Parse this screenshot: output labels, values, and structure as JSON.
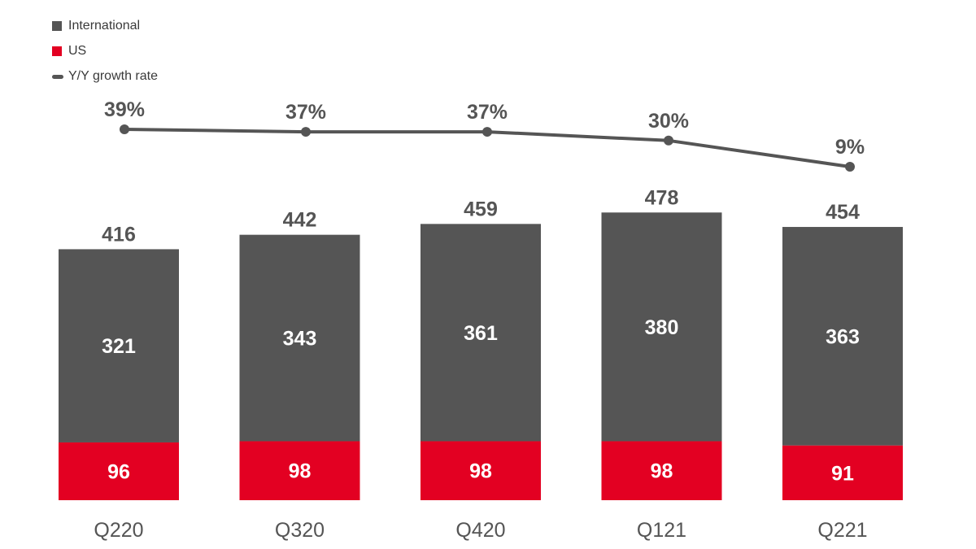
{
  "legend": {
    "international": "International",
    "us": "US",
    "growth": "Y/Y growth rate"
  },
  "colors": {
    "international": "#555555",
    "us": "#e30022",
    "line": "#555555"
  },
  "chart_data": {
    "type": "bar",
    "stacked": true,
    "categories": [
      "Q220",
      "Q320",
      "Q420",
      "Q121",
      "Q221"
    ],
    "series": [
      {
        "name": "US",
        "values": [
          96,
          98,
          98,
          98,
          91
        ]
      },
      {
        "name": "International",
        "values": [
          321,
          343,
          361,
          380,
          363
        ]
      }
    ],
    "totals": [
      416,
      442,
      459,
      478,
      454
    ],
    "line_series": {
      "name": "Y/Y growth rate",
      "values": [
        39,
        37,
        37,
        30,
        9
      ],
      "labels": [
        "39%",
        "37%",
        "37%",
        "30%",
        "9%"
      ]
    },
    "legend_position": "top-left"
  }
}
